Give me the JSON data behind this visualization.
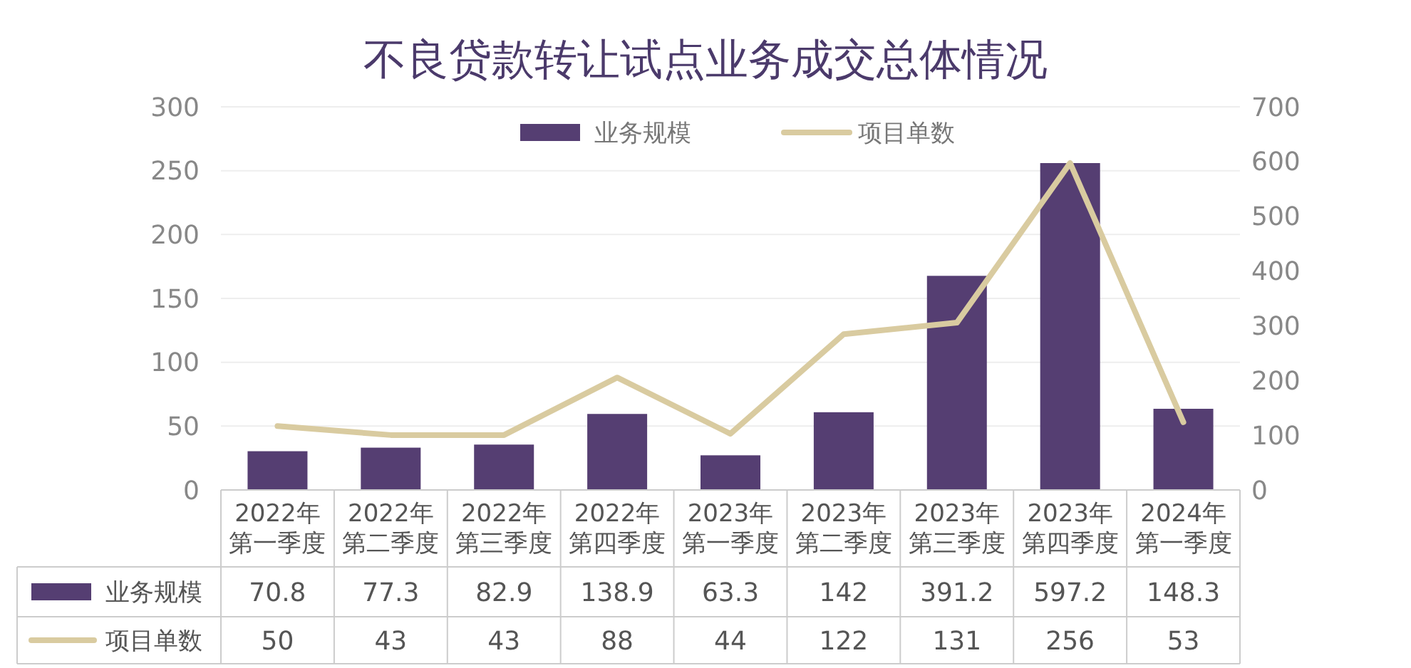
{
  "chart_data": {
    "type": "bar",
    "title": "不良贷款转让试点业务成交总体情况",
    "categories": [
      "2022年第一季度",
      "2022年第二季度",
      "2022年第三季度",
      "2022年第四季度",
      "2023年第一季度",
      "2023年第二季度",
      "2023年第三季度",
      "2023年第四季度",
      "2024年第一季度"
    ],
    "series": [
      {
        "name": "业务规模",
        "axis": "y2",
        "color": "#553e72",
        "values": [
          70.8,
          77.3,
          82.9,
          138.9,
          63.3,
          142,
          391.2,
          597.2,
          148.3
        ]
      },
      {
        "name": "项目单数",
        "type": "line",
        "axis": "y",
        "color": "#d9cba0",
        "values": [
          50,
          43,
          43,
          88,
          44,
          122,
          131,
          256,
          53
        ]
      }
    ],
    "ylim": [
      0,
      300
    ],
    "yticks": [
      0,
      50,
      100,
      150,
      200,
      250,
      300
    ],
    "y2lim": [
      0,
      700
    ],
    "y2ticks": [
      0,
      100,
      200,
      300,
      400,
      500,
      600,
      700
    ],
    "grid": "y",
    "legend": "top",
    "data_labels": true,
    "line_style": "solid"
  }
}
